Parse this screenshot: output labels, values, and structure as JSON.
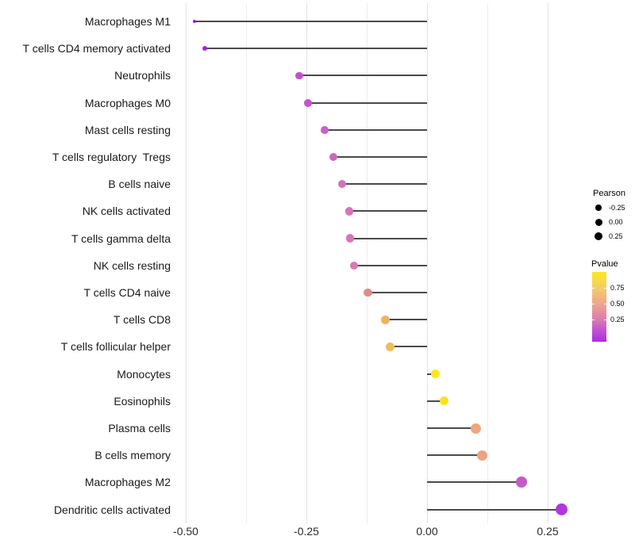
{
  "chart_data": {
    "type": "lollipop",
    "title": "",
    "xlabel": "",
    "ylabel": "",
    "x_axis": {
      "tick_values": [
        -0.5,
        -0.25,
        0,
        0.25
      ],
      "tick_labels": [
        "-0.50",
        "-0.25",
        "0.00",
        "0.25"
      ],
      "minor_tick_values": [
        -0.375,
        -0.125,
        0.125
      ],
      "range": [
        -0.52,
        0.32
      ]
    },
    "points": [
      {
        "label": "Macrophages M1",
        "pearson": -0.482,
        "color": "#8B1FD5",
        "radius": 2.4
      },
      {
        "label": "T cells CD4 memory activated",
        "pearson": -0.461,
        "color": "#9C2BD9",
        "radius": 3.0
      },
      {
        "label": "Neutrophils",
        "pearson": -0.265,
        "color": "#C150CE",
        "radius": 4.9
      },
      {
        "label": "Macrophages M0",
        "pearson": -0.246,
        "color": "#C455CB",
        "radius": 5.0
      },
      {
        "label": "Mast cells resting",
        "pearson": -0.212,
        "color": "#C95FC7",
        "radius": 5.0
      },
      {
        "label": "T cells regulatory  Tregs",
        "pearson": -0.194,
        "color": "#CD66C3",
        "radius": 5.1
      },
      {
        "label": "B cells naive",
        "pearson": -0.176,
        "color": "#D571BA",
        "radius": 5.1
      },
      {
        "label": "NK cells activated",
        "pearson": -0.161,
        "color": "#D774B7",
        "radius": 5.2
      },
      {
        "label": "T cells gamma delta",
        "pearson": -0.16,
        "color": "#D875B5",
        "radius": 5.2
      },
      {
        "label": "NK cells resting",
        "pearson": -0.151,
        "color": "#DA78B2",
        "radius": 5.2
      },
      {
        "label": "T cells CD4 naive",
        "pearson": -0.122,
        "color": "#E18B85",
        "radius": 5.4
      },
      {
        "label": "T cells CD8",
        "pearson": -0.086,
        "color": "#EFB360",
        "radius": 5.5
      },
      {
        "label": "T cells follicular helper",
        "pearson": -0.076,
        "color": "#F1BC59",
        "radius": 5.5
      },
      {
        "label": "Monocytes",
        "pearson": 0.017,
        "color": "#F9E720",
        "radius": 5.6
      },
      {
        "label": "Eosinophils",
        "pearson": 0.035,
        "color": "#F8E21D",
        "radius": 5.7
      },
      {
        "label": "Plasma cells",
        "pearson": 0.101,
        "color": "#EFA67E",
        "radius": 6.5
      },
      {
        "label": "B cells memory",
        "pearson": 0.115,
        "color": "#EDA283",
        "radius": 6.5
      },
      {
        "label": "Macrophages M2",
        "pearson": 0.195,
        "color": "#C45BC4",
        "radius": 7.0
      },
      {
        "label": "Dendritic cells activated",
        "pearson": 0.279,
        "color": "#B138DC",
        "radius": 7.5
      }
    ]
  },
  "legend": {
    "pearson": {
      "title": "Pearson",
      "dot_color": "#000000",
      "items": [
        {
          "label": "-0.25",
          "radius": 3.7
        },
        {
          "label": "0.00",
          "radius": 4.5
        },
        {
          "label": "0.25",
          "radius": 5.3
        }
      ]
    },
    "pvalue": {
      "title": "Pvalue",
      "tick_labels": [
        "0.75",
        "0.50",
        "0.25"
      ],
      "gradient": [
        "#FBE723",
        "#F6CD67",
        "#EFA78C",
        "#DC7BB3",
        "#C04FD4",
        "#AC2CE4"
      ]
    }
  },
  "colors": {
    "background": "#ffffff",
    "stem": "#4a4a4a",
    "grid_major": "#e2e2e2",
    "grid_minor": "#ededed",
    "text": "#1a1a1a"
  }
}
